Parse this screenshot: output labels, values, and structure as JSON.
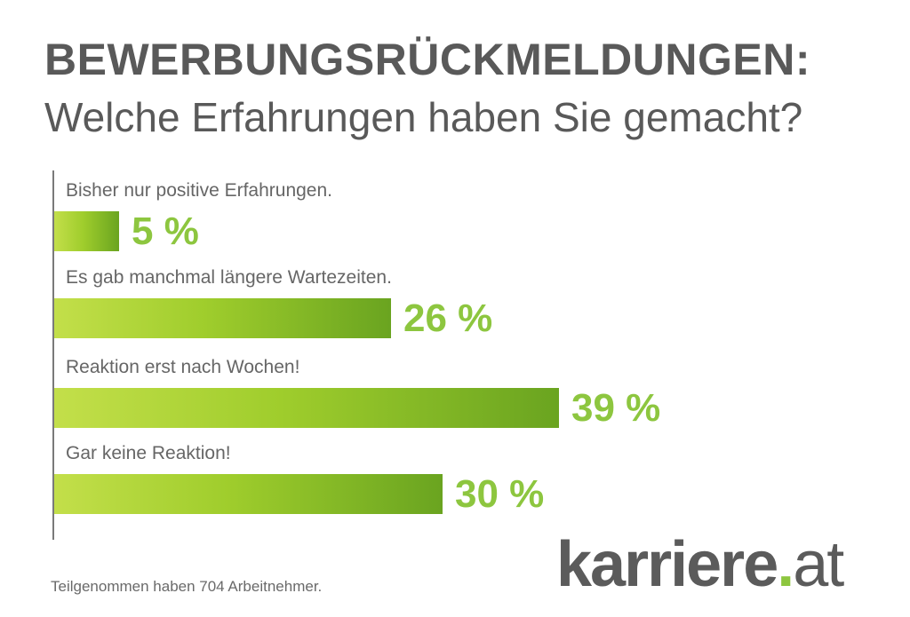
{
  "chart_data": {
    "type": "bar",
    "orientation": "horizontal",
    "title": "BEWERBUNGSRÜCKMELDUNGEN:",
    "subtitle": "Welche Erfahrungen haben Sie gemacht?",
    "categories": [
      "Bisher nur positive Erfahrungen.",
      "Es gab manchmal längere Wartezeiten.",
      "Reaktion erst nach Wochen!",
      "Gar keine Reaktion!"
    ],
    "values": [
      5,
      26,
      39,
      30
    ],
    "value_labels": [
      "5 %",
      "26 %",
      "39 %",
      "30 %"
    ],
    "unit": "%",
    "xlim": [
      0,
      39
    ],
    "grid": false,
    "bar_color_start": "#c3df4a",
    "bar_color_end": "#6aa420",
    "value_color": "#8dc63f"
  },
  "footnote": "Teilgenommen haben 704 Arbeitnehmer.",
  "logo": {
    "name": "karriere",
    "dot": ".",
    "tld": "at"
  }
}
